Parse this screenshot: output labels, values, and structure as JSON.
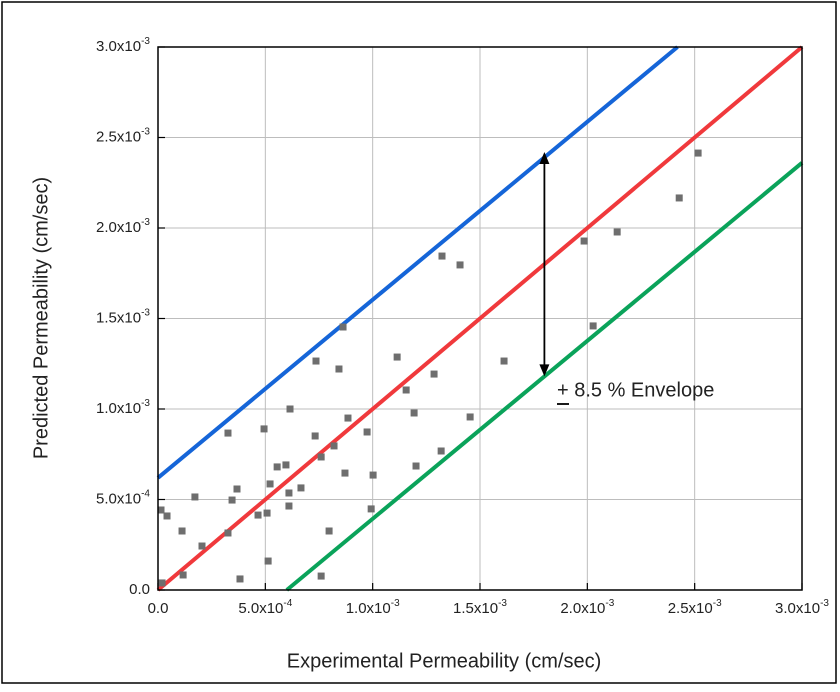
{
  "chart_data": {
    "type": "scatter",
    "xlabel": "Experimental Permeability (cm/sec)",
    "ylabel": "Predicted  Permeability (cm/sec)",
    "annotation": "+ 8.5 % Envelope",
    "arrow": {
      "x": 0.0018,
      "y": [
        0.00242,
        0.00118
      ],
      "color": "#000000"
    },
    "xlim": [
      0,
      0.003
    ],
    "ylim": [
      0,
      0.003
    ],
    "grid": true,
    "xticks": [
      {
        "value": 0,
        "label": "0.0"
      },
      {
        "value": 0.0005,
        "label": "5.0x10-4"
      },
      {
        "value": 0.001,
        "label": "1.0x10-3"
      },
      {
        "value": 0.0015,
        "label": "1.5x10-3"
      },
      {
        "value": 0.002,
        "label": "2.0x10-3"
      },
      {
        "value": 0.0025,
        "label": "2.5x10-3"
      },
      {
        "value": 0.003,
        "label": "3.0x10-3"
      }
    ],
    "yticks": [
      {
        "value": 0,
        "label": "0.0"
      },
      {
        "value": 0.0005,
        "label": "5.0x10-4"
      },
      {
        "value": 0.001,
        "label": "1.0x10-3"
      },
      {
        "value": 0.0015,
        "label": "1.5x10-3"
      },
      {
        "value": 0.002,
        "label": "2.0x10-3"
      },
      {
        "value": 0.0025,
        "label": "2.5x10-3"
      },
      {
        "value": 0.003,
        "label": "3.0x10-3"
      }
    ],
    "series": [
      {
        "type": "line",
        "color": "#1565d8",
        "x": [
          0,
          0.00242
        ],
        "values": [
          0.00062,
          0.003
        ]
      },
      {
        "type": "line",
        "color": "#f0393c",
        "x": [
          0,
          0.003
        ],
        "values": [
          0,
          0.003
        ]
      },
      {
        "type": "line",
        "color": "#0aa35a",
        "x": [
          0.0006,
          0.003
        ],
        "values": [
          0,
          0.00236
        ]
      },
      {
        "type": "scatter",
        "color": "#6e6e6e",
        "x": [
          1.4e-05,
          4.2e-05,
          1.9e-05,
          0.000112,
          0.000117,
          0.000172,
          0.000205,
          0.000326,
          0.000326,
          0.000345,
          0.000368,
          0.000382,
          0.000466,
          0.000494,
          0.000508,
          0.000513,
          0.000522,
          0.000555,
          0.000596,
          0.00061,
          0.00061,
          0.000615,
          0.000666,
          0.000732,
          0.000736,
          0.00076,
          0.00076,
          0.000797,
          0.00082,
          0.000843,
          0.000862,
          0.000871,
          0.000885,
          0.000974,
          0.000993,
          0.001002,
          0.001114,
          0.001156,
          0.001193,
          0.001202,
          0.001286,
          0.001319,
          0.001323,
          0.001407,
          0.001454,
          0.001612,
          0.001985,
          0.002027,
          0.002139,
          0.002428,
          0.002516
        ],
        "values": [
          0.000442,
          0.000409,
          3.9e-05,
          0.000326,
          8.3e-05,
          0.000514,
          0.000243,
          0.000315,
          0.000867,
          0.000497,
          0.000558,
          6.1e-05,
          0.000414,
          0.00089,
          0.000425,
          0.00016,
          0.000586,
          0.00068,
          0.000691,
          0.000536,
          0.000464,
          0.001,
          0.000564,
          0.000851,
          0.001265,
          7.7e-05,
          0.000735,
          0.000326,
          0.000796,
          0.001221,
          0.001453,
          0.000646,
          0.00095,
          0.000873,
          0.000448,
          0.000635,
          0.001287,
          0.001105,
          0.000978,
          0.000685,
          0.001193,
          0.000768,
          0.001845,
          0.001796,
          0.000956,
          0.001265,
          0.001928,
          0.001459,
          0.001978,
          0.002166,
          0.002414
        ]
      }
    ]
  }
}
